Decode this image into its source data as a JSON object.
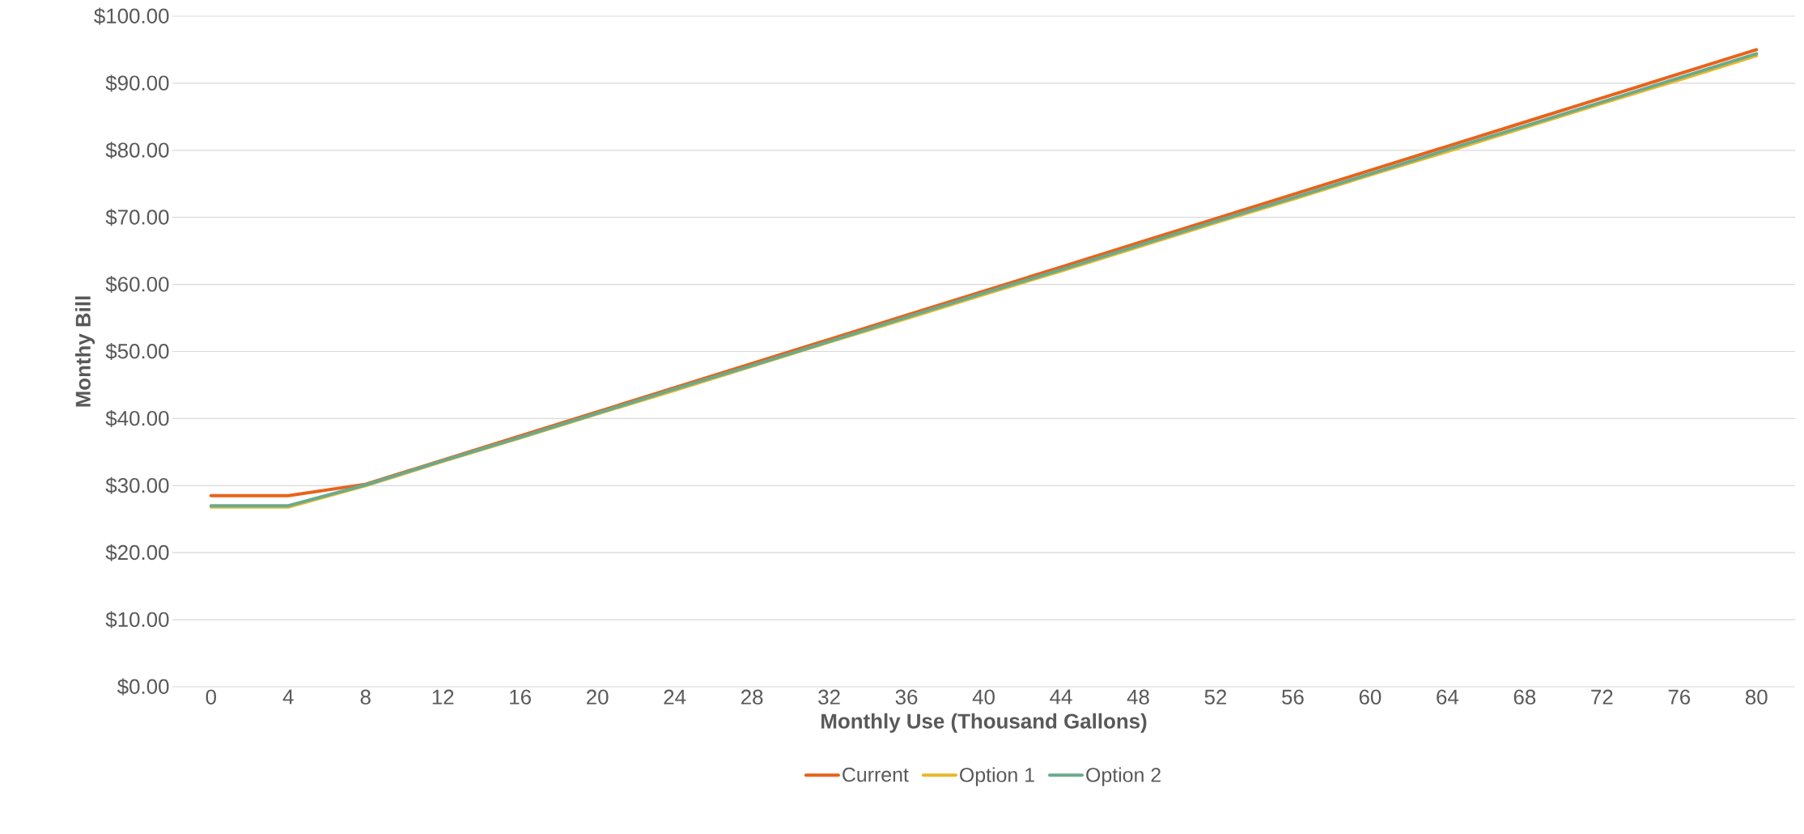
{
  "chart_data": {
    "type": "line",
    "xlabel": "Monthly Use (Thousand Gallons)",
    "ylabel": "Monthy Bill",
    "categories": [
      "0",
      "4",
      "8",
      "12",
      "16",
      "20",
      "24",
      "28",
      "32",
      "36",
      "40",
      "44",
      "48",
      "52",
      "56",
      "60",
      "64",
      "68",
      "72",
      "76",
      "80"
    ],
    "series": [
      {
        "name": "Current",
        "color": "#e8631a",
        "values": [
          28.5,
          28.5,
          30.2,
          33.8,
          37.4,
          41.0,
          44.6,
          48.2,
          51.8,
          55.4,
          59.0,
          62.6,
          66.2,
          69.8,
          73.4,
          77.0,
          80.6,
          84.2,
          87.8,
          91.4,
          95.0
        ]
      },
      {
        "name": "Option 1",
        "color": "#e8b82a",
        "values": [
          26.8,
          26.8,
          30.0,
          33.6,
          37.1,
          40.7,
          44.2,
          47.8,
          51.4,
          54.9,
          58.5,
          62.0,
          65.6,
          69.2,
          72.7,
          76.3,
          79.8,
          83.4,
          87.0,
          90.5,
          94.1
        ]
      },
      {
        "name": "Option 2",
        "color": "#6aaa8e",
        "values": [
          27.0,
          27.0,
          30.1,
          33.7,
          37.2,
          40.8,
          44.4,
          47.9,
          51.5,
          55.1,
          58.7,
          62.2,
          65.8,
          69.4,
          72.9,
          76.5,
          80.1,
          83.6,
          87.2,
          90.8,
          94.4
        ]
      }
    ],
    "ylim": [
      0,
      100
    ],
    "yticks": [
      {
        "value": 0,
        "label": "$0.00"
      },
      {
        "value": 10,
        "label": "$10.00"
      },
      {
        "value": 20,
        "label": "$20.00"
      },
      {
        "value": 30,
        "label": "$30.00"
      },
      {
        "value": 40,
        "label": "$40.00"
      },
      {
        "value": 50,
        "label": "$50.00"
      },
      {
        "value": 60,
        "label": "$60.00"
      },
      {
        "value": 70,
        "label": "$70.00"
      },
      {
        "value": 80,
        "label": "$80.00"
      },
      {
        "value": 90,
        "label": "$90.00"
      },
      {
        "value": 100,
        "label": "$100.00"
      }
    ],
    "grid": "y",
    "legend": "bottom",
    "marker": "none",
    "line_style": "solid"
  }
}
